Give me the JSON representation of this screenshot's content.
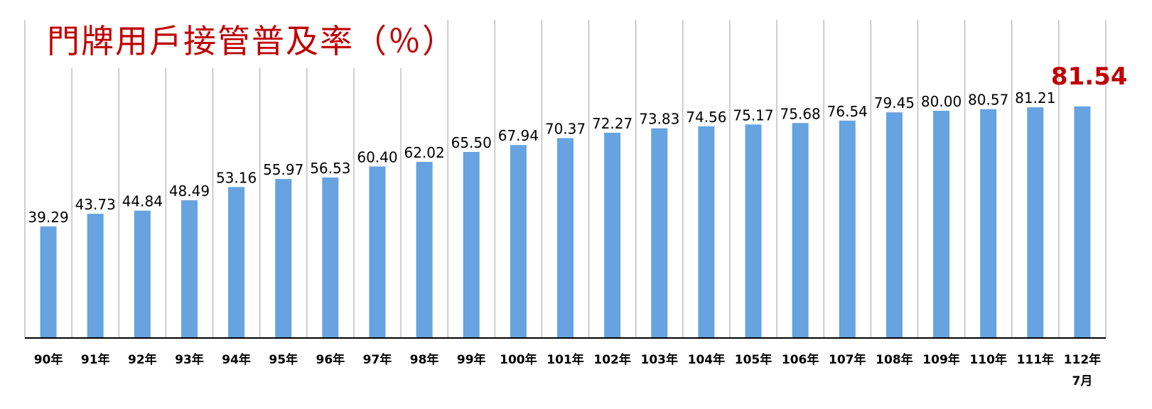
{
  "chart_data": {
    "type": "bar",
    "title": "門牌用戶接管普及率（％）",
    "categories": [
      "90年",
      "91年",
      "92年",
      "93年",
      "94年",
      "95年",
      "96年",
      "97年",
      "98年",
      "99年",
      "100年",
      "101年",
      "102年",
      "103年",
      "104年",
      "105年",
      "106年",
      "107年",
      "108年",
      "109年",
      "110年",
      "111年",
      "112年"
    ],
    "category_sublabels": {
      "22": "7月"
    },
    "values": [
      39.29,
      43.73,
      44.84,
      48.49,
      53.16,
      55.97,
      56.53,
      60.4,
      62.02,
      65.5,
      67.94,
      70.37,
      72.27,
      73.83,
      74.56,
      75.17,
      75.68,
      76.54,
      79.45,
      80.0,
      80.57,
      81.21,
      81.54
    ],
    "value_labels": [
      "39.29",
      "43.73",
      "44.84",
      "48.49",
      "53.16",
      "55.97",
      "56.53",
      "60.40",
      "62.02",
      "65.50",
      "67.94",
      "70.37",
      "72.27",
      "73.83",
      "74.56",
      "75.17",
      "75.68",
      "76.54",
      "79.45",
      "80.00",
      "80.57",
      "81.21",
      "81.54"
    ],
    "highlight_index": 22,
    "xlabel": "",
    "ylabel": "",
    "ylim": [
      0,
      100
    ],
    "grid": "vertical",
    "legend": "none",
    "colors": {
      "bar": "#66a3e0",
      "title": "#c00000",
      "highlight": "#c00000",
      "grid": "#bfbfbf"
    }
  }
}
